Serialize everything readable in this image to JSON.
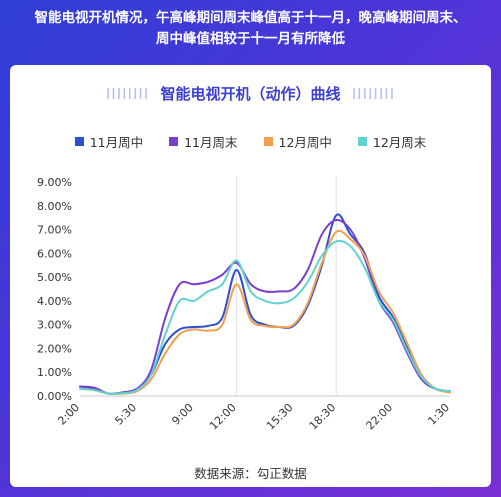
{
  "headline": {
    "line1": "智能电视开机情况，午高峰期间周末峰值高于十一月，晚高峰期间周末、",
    "line2": "周中峰值相较于十一月有所降低"
  },
  "card": {
    "title": "智能电视开机（动作）曲线",
    "title_deco_left": "IIIIIIII",
    "title_deco_right": "IIIIIIII",
    "source": "数据来源：勾正数据"
  },
  "chart_data": {
    "type": "line",
    "title": "智能电视开机（动作）曲线",
    "xlabel": "",
    "ylabel": "",
    "x_ticks": [
      "2:00",
      "5:30",
      "9:00",
      "12:00",
      "15:30",
      "18:30",
      "22:00",
      "1:30"
    ],
    "y_ticks": [
      "0.00%",
      "1.00%",
      "2.00%",
      "3.00%",
      "4.00%",
      "5.00%",
      "6.00%",
      "7.00%",
      "8.00%",
      "9.00%"
    ],
    "ylim": [
      0,
      9
    ],
    "grid": false,
    "legend_placement": "top",
    "x": [
      "2:00",
      "3:00",
      "4:00",
      "5:00",
      "5:30",
      "6:30",
      "7:30",
      "8:30",
      "9:00",
      "10:00",
      "11:00",
      "12:00",
      "13:00",
      "14:00",
      "15:00",
      "15:30",
      "16:30",
      "17:30",
      "18:30",
      "19:30",
      "20:30",
      "21:30",
      "22:00",
      "23:00",
      "0:00",
      "1:00",
      "1:30"
    ],
    "series": [
      {
        "name": "11月周中",
        "color": "#2b4fcf",
        "values": [
          0.4,
          0.3,
          0.1,
          0.15,
          0.3,
          0.9,
          2.2,
          2.8,
          2.9,
          2.95,
          3.3,
          5.3,
          3.4,
          3.0,
          2.9,
          2.95,
          3.8,
          5.5,
          7.6,
          6.8,
          6.0,
          4.2,
          3.3,
          2.0,
          0.8,
          0.3,
          0.2
        ]
      },
      {
        "name": "11月周末",
        "color": "#7b3fd0",
        "values": [
          0.4,
          0.35,
          0.1,
          0.15,
          0.3,
          1.1,
          3.3,
          4.7,
          4.7,
          4.8,
          5.1,
          5.6,
          4.7,
          4.4,
          4.4,
          4.5,
          5.3,
          6.8,
          7.4,
          7.0,
          5.8,
          4.0,
          3.1,
          1.8,
          0.7,
          0.3,
          0.2
        ]
      },
      {
        "name": "12月周中",
        "color": "#f0a050",
        "values": [
          0.3,
          0.25,
          0.1,
          0.1,
          0.2,
          0.7,
          1.8,
          2.6,
          2.8,
          2.75,
          3.0,
          4.7,
          3.2,
          2.95,
          2.9,
          3.0,
          3.9,
          5.6,
          6.9,
          6.6,
          5.9,
          4.4,
          3.5,
          2.2,
          0.9,
          0.3,
          0.15
        ]
      },
      {
        "name": "12月周末",
        "color": "#5fd3cf",
        "values": [
          0.3,
          0.25,
          0.1,
          0.12,
          0.25,
          0.9,
          2.6,
          4.0,
          4.0,
          4.4,
          4.7,
          5.7,
          4.4,
          4.0,
          3.9,
          4.1,
          4.8,
          5.9,
          6.5,
          6.3,
          5.4,
          4.0,
          3.2,
          1.9,
          0.8,
          0.3,
          0.2
        ]
      }
    ]
  }
}
